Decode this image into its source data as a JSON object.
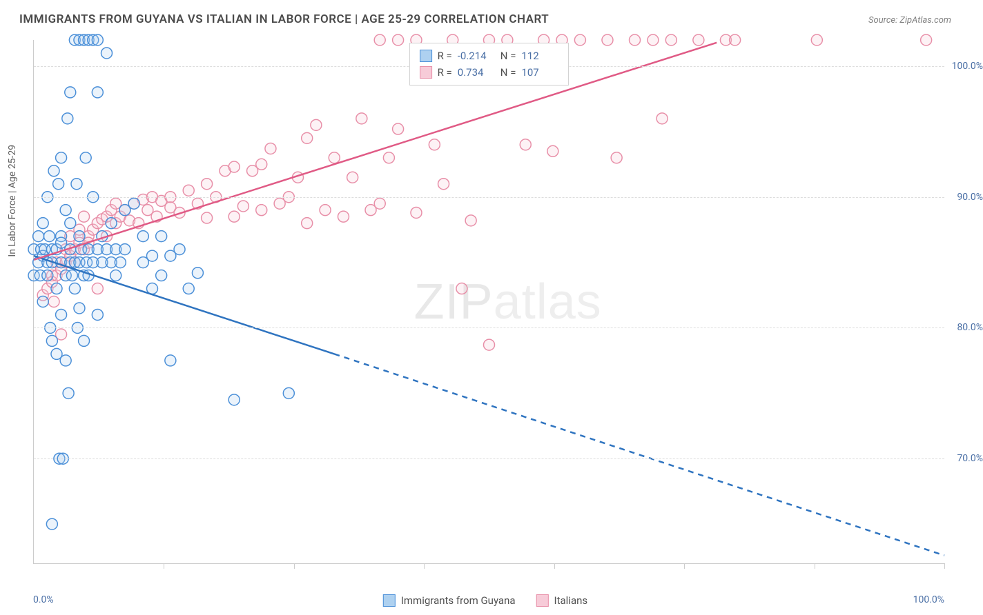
{
  "title": "IMMIGRANTS FROM GUYANA VS ITALIAN IN LABOR FORCE | AGE 25-29 CORRELATION CHART",
  "source": "Source: ZipAtlas.com",
  "axis": {
    "ylabel": "In Labor Force | Age 25-29",
    "x_min_label": "0.0%",
    "x_max_label": "100.0%",
    "ytick_labels": [
      "70.0%",
      "80.0%",
      "90.0%",
      "100.0%"
    ],
    "ytick_values": [
      70,
      80,
      90,
      100
    ],
    "xlim": [
      0,
      100
    ],
    "ylim": [
      62,
      102
    ],
    "grid_color": "#dddddd",
    "axis_color": "#cccccc",
    "label_color": "#4a6fa5",
    "tick_fontsize": 14
  },
  "watermark": {
    "text_a": "ZIP",
    "text_b": "atlas",
    "color": "#e8e8e8",
    "fontsize": 72
  },
  "series": {
    "guyana": {
      "label": "Immigrants from Guyana",
      "color_stroke": "#4a8fd8",
      "color_fill": "#aed1f0",
      "swatch_border": "#4a8fd8",
      "R": "-0.214",
      "N": "112",
      "line": {
        "x1": 0,
        "y1": 85.5,
        "x2_solid": 33,
        "y2_solid": 78,
        "x2_dash": 100,
        "y2_dash": 62.6,
        "width": 2.5,
        "color": "#2f74c0"
      },
      "points": [
        [
          0,
          84
        ],
        [
          0,
          86
        ],
        [
          0.5,
          85
        ],
        [
          0.5,
          87
        ],
        [
          0.7,
          84
        ],
        [
          0.8,
          86
        ],
        [
          1,
          85.5
        ],
        [
          1,
          88
        ],
        [
          1,
          82
        ],
        [
          1.2,
          86
        ],
        [
          1.5,
          84
        ],
        [
          1.5,
          85
        ],
        [
          1.5,
          90
        ],
        [
          1.7,
          87
        ],
        [
          1.8,
          80
        ],
        [
          2,
          85
        ],
        [
          2,
          86
        ],
        [
          2,
          79
        ],
        [
          2,
          65
        ],
        [
          2.2,
          92
        ],
        [
          2.5,
          83
        ],
        [
          2.5,
          86
        ],
        [
          2.5,
          78
        ],
        [
          2.7,
          91
        ],
        [
          2.8,
          70
        ],
        [
          3,
          85
        ],
        [
          3,
          87
        ],
        [
          3,
          86.5
        ],
        [
          3,
          93
        ],
        [
          3,
          81
        ],
        [
          3.2,
          70
        ],
        [
          3.5,
          84
        ],
        [
          3.5,
          89
        ],
        [
          3.5,
          77.5
        ],
        [
          3.7,
          96
        ],
        [
          3.8,
          75
        ],
        [
          4,
          85
        ],
        [
          4,
          86
        ],
        [
          4,
          88
        ],
        [
          4,
          98
        ],
        [
          4.2,
          84
        ],
        [
          4.5,
          85
        ],
        [
          4.5,
          83
        ],
        [
          4.5,
          102
        ],
        [
          4.7,
          91
        ],
        [
          4.8,
          80
        ],
        [
          5,
          85
        ],
        [
          5,
          87
        ],
        [
          5,
          102
        ],
        [
          5,
          81.5
        ],
        [
          5.2,
          86
        ],
        [
          5.5,
          84
        ],
        [
          5.5,
          102
        ],
        [
          5.5,
          79
        ],
        [
          5.7,
          93
        ],
        [
          5.8,
          85
        ],
        [
          6,
          86
        ],
        [
          6,
          102
        ],
        [
          6,
          84
        ],
        [
          6.5,
          85
        ],
        [
          6.5,
          102
        ],
        [
          6.5,
          90
        ],
        [
          7,
          86
        ],
        [
          7,
          102
        ],
        [
          7,
          98
        ],
        [
          7,
          81
        ],
        [
          7.5,
          85
        ],
        [
          7.5,
          87
        ],
        [
          8,
          86
        ],
        [
          8,
          101
        ],
        [
          8.5,
          85
        ],
        [
          8.5,
          88
        ],
        [
          9,
          84
        ],
        [
          9,
          86
        ],
        [
          9.5,
          85
        ],
        [
          10,
          89
        ],
        [
          10,
          86
        ],
        [
          11,
          89.5
        ],
        [
          12,
          87
        ],
        [
          12,
          85
        ],
        [
          13,
          83
        ],
        [
          13,
          85.5
        ],
        [
          14,
          84
        ],
        [
          14,
          87
        ],
        [
          15,
          77.5
        ],
        [
          15,
          85.5
        ],
        [
          16,
          86
        ],
        [
          17,
          83
        ],
        [
          18,
          84.2
        ],
        [
          22,
          74.5
        ],
        [
          28,
          75
        ]
      ]
    },
    "italians": {
      "label": "Italians",
      "color_stroke": "#e88fa8",
      "color_fill": "#f7cbd8",
      "swatch_border": "#e88fa8",
      "R": "0.734",
      "N": "107",
      "line": {
        "x1": 0,
        "y1": 85.2,
        "x2_solid": 75,
        "y2_solid": 101.8,
        "x2_dash": 75,
        "y2_dash": 101.8,
        "width": 2.5,
        "color": "#e05a85"
      },
      "points": [
        [
          1,
          82.5
        ],
        [
          1.5,
          83
        ],
        [
          2,
          84
        ],
        [
          2,
          83.5
        ],
        [
          2.2,
          82
        ],
        [
          2.5,
          85
        ],
        [
          2.5,
          84
        ],
        [
          3,
          84.5
        ],
        [
          3,
          79.5
        ],
        [
          3.5,
          85
        ],
        [
          3.5,
          86
        ],
        [
          4,
          85.5
        ],
        [
          4,
          87
        ],
        [
          4.5,
          86
        ],
        [
          4.5,
          85
        ],
        [
          5,
          86.5
        ],
        [
          5,
          87.5
        ],
        [
          5.5,
          86
        ],
        [
          5.5,
          88.5
        ],
        [
          6,
          87
        ],
        [
          6,
          86.5
        ],
        [
          6.5,
          87.5
        ],
        [
          7,
          88
        ],
        [
          7,
          83
        ],
        [
          7.5,
          88.3
        ],
        [
          8,
          88.5
        ],
        [
          8,
          87
        ],
        [
          8.5,
          89
        ],
        [
          9,
          88
        ],
        [
          9,
          89.5
        ],
        [
          9.5,
          88.5
        ],
        [
          10,
          89
        ],
        [
          10.5,
          88.2
        ],
        [
          11,
          89.5
        ],
        [
          11.5,
          88
        ],
        [
          12,
          89.8
        ],
        [
          12.5,
          89
        ],
        [
          13,
          90
        ],
        [
          13.5,
          88.5
        ],
        [
          14,
          89.7
        ],
        [
          15,
          90
        ],
        [
          15,
          89.2
        ],
        [
          16,
          88.8
        ],
        [
          17,
          90.5
        ],
        [
          18,
          89.5
        ],
        [
          19,
          91
        ],
        [
          19,
          88.4
        ],
        [
          20,
          90
        ],
        [
          21,
          92
        ],
        [
          22,
          92.3
        ],
        [
          22,
          88.5
        ],
        [
          23,
          89.3
        ],
        [
          24,
          92
        ],
        [
          25,
          89
        ],
        [
          25,
          92.5
        ],
        [
          26,
          93.7
        ],
        [
          27,
          89.5
        ],
        [
          28,
          90
        ],
        [
          29,
          91.5
        ],
        [
          30,
          94.5
        ],
        [
          30,
          88
        ],
        [
          31,
          95.5
        ],
        [
          32,
          89
        ],
        [
          33,
          93
        ],
        [
          34,
          88.5
        ],
        [
          35,
          91.5
        ],
        [
          36,
          96
        ],
        [
          37,
          89
        ],
        [
          38,
          102
        ],
        [
          38,
          89.5
        ],
        [
          39,
          93
        ],
        [
          40,
          102
        ],
        [
          40,
          95.2
        ],
        [
          42,
          102
        ],
        [
          42,
          88.8
        ],
        [
          44,
          94
        ],
        [
          45,
          91
        ],
        [
          46,
          102
        ],
        [
          47,
          83
        ],
        [
          48,
          88.2
        ],
        [
          50,
          102
        ],
        [
          50,
          78.7
        ],
        [
          52,
          102
        ],
        [
          54,
          94
        ],
        [
          56,
          102
        ],
        [
          57,
          93.5
        ],
        [
          58,
          102
        ],
        [
          60,
          102
        ],
        [
          63,
          102
        ],
        [
          64,
          93
        ],
        [
          66,
          102
        ],
        [
          68,
          102
        ],
        [
          69,
          96
        ],
        [
          70,
          102
        ],
        [
          73,
          102
        ],
        [
          76,
          102
        ],
        [
          77,
          102
        ],
        [
          86,
          102
        ],
        [
          98,
          102
        ]
      ]
    }
  },
  "legend_top": {
    "r_label": "R =",
    "n_label": "N =",
    "background": "#ffffff",
    "border": "#d0d0d0"
  },
  "legend_bottom": {
    "items": [
      "guyana",
      "italians"
    ]
  },
  "marker": {
    "radius": 8,
    "stroke_width": 1.5,
    "fill_opacity": 0.25
  }
}
